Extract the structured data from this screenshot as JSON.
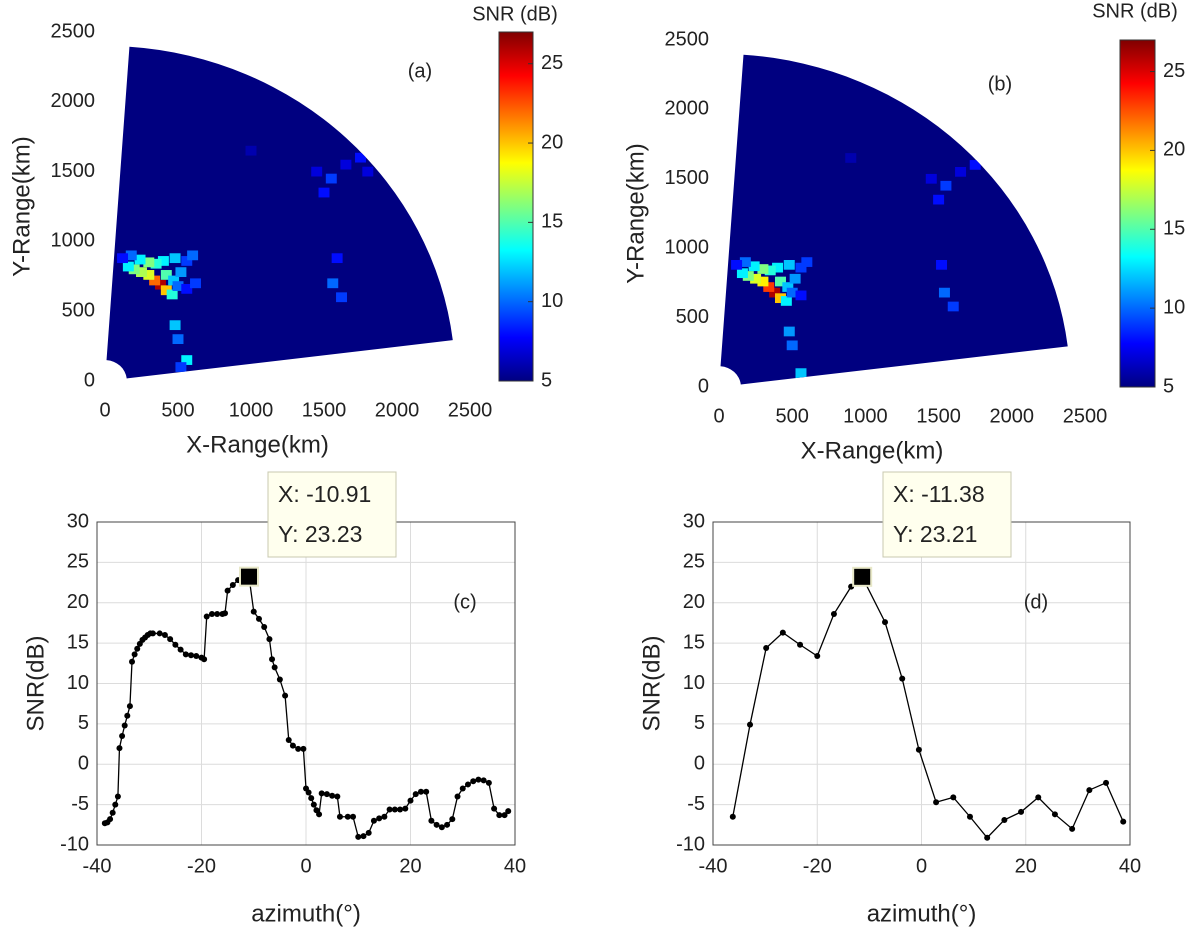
{
  "chart_data": [
    {
      "type": "heatmap",
      "label": "(a)",
      "xlabel": "X-Range(km)",
      "ylabel": "Y-Range(km)",
      "colorbar_label": "SNR (dB)",
      "xlim": [
        0,
        2500
      ],
      "xticks": [
        0,
        500,
        1000,
        1500,
        2000,
        2500
      ],
      "ylim": [
        0,
        2500
      ],
      "yticks": [
        0,
        500,
        1000,
        1500,
        2000,
        2500
      ],
      "clim": [
        5,
        27
      ],
      "cticks": [
        5,
        10,
        15,
        20,
        25
      ],
      "x": [
        380,
        340,
        300,
        250,
        200,
        160,
        420,
        460,
        420,
        470,
        500,
        520,
        560,
        600,
        480,
        400,
        350,
        300,
        240,
        180,
        120,
        560,
        620,
        480,
        500,
        560,
        520,
        1560,
        1620,
        1590,
        1500,
        1550,
        1650,
        1750,
        1800,
        1450,
        1000
      ],
      "y": [
        690,
        720,
        760,
        780,
        800,
        820,
        650,
        620,
        760,
        720,
        680,
        780,
        860,
        900,
        880,
        860,
        840,
        850,
        870,
        900,
        880,
        660,
        700,
        400,
        300,
        150,
        100,
        700,
        600,
        880,
        1350,
        1450,
        1550,
        1600,
        1500,
        1500,
        1650
      ],
      "values": [
        26,
        22,
        18,
        17,
        16,
        13,
        20,
        14,
        15,
        12,
        10,
        11,
        9,
        10,
        12,
        13,
        14,
        16,
        13,
        10,
        8,
        8,
        9,
        12,
        10,
        13,
        9,
        10,
        9,
        8,
        8,
        9,
        7,
        8,
        7,
        7,
        6
      ]
    },
    {
      "type": "heatmap",
      "label": "(b)",
      "xlabel": "X-Range(km)",
      "ylabel": "Y-Range(km)",
      "colorbar_label": "SNR (dB)",
      "xlim": [
        0,
        2500
      ],
      "xticks": [
        0,
        500,
        1000,
        1500,
        2000,
        2500
      ],
      "ylim": [
        0,
        2500
      ],
      "yticks": [
        0,
        500,
        1000,
        1500,
        2000,
        2500
      ],
      "clim": [
        5,
        27
      ],
      "cticks": [
        5,
        10,
        15,
        20,
        25
      ],
      "x": [
        380,
        340,
        300,
        250,
        200,
        160,
        420,
        460,
        420,
        470,
        500,
        520,
        560,
        600,
        480,
        400,
        350,
        300,
        240,
        180,
        120,
        560,
        480,
        500,
        560,
        1540,
        1600,
        1520,
        1500,
        1550,
        1650,
        1750,
        1450,
        900
      ],
      "y": [
        680,
        720,
        760,
        780,
        800,
        820,
        640,
        620,
        760,
        720,
        680,
        780,
        860,
        900,
        880,
        860,
        840,
        850,
        870,
        900,
        880,
        660,
        400,
        300,
        100,
        680,
        580,
        880,
        1350,
        1450,
        1550,
        1600,
        1500,
        1650
      ],
      "values": [
        26,
        23,
        19,
        18,
        16,
        13,
        20,
        13,
        15,
        12,
        10,
        11,
        9,
        9,
        12,
        13,
        14,
        16,
        13,
        10,
        8,
        8,
        11,
        10,
        12,
        10,
        9,
        8,
        8,
        9,
        7,
        8,
        7,
        6
      ]
    },
    {
      "type": "line",
      "label": "(c)",
      "xlabel": "azimuth(°)",
      "ylabel": "SNR(dB)",
      "grid": true,
      "xlim": [
        -40,
        40
      ],
      "xticks": [
        -40,
        -20,
        0,
        20,
        40
      ],
      "ylim": [
        -10,
        30
      ],
      "yticks": [
        -10,
        -5,
        0,
        5,
        10,
        15,
        20,
        25,
        30
      ],
      "datatip": [
        "X: -10.91",
        "Y: 23.23"
      ],
      "x": [
        -38.5,
        -38,
        -37.5,
        -37,
        -36.5,
        -36,
        -35.7,
        -35.2,
        -34.7,
        -34.2,
        -33.7,
        -33.3,
        -32.8,
        -32.3,
        -31.8,
        -31.3,
        -30.8,
        -30.3,
        -29.8,
        -29.3,
        -28,
        -27,
        -26,
        -25,
        -24,
        -23,
        -22,
        -21,
        -20,
        -19.5,
        -19,
        -18,
        -17,
        -16,
        -15.5,
        -15,
        -14,
        -13,
        -12,
        -10.91,
        -10,
        -9,
        -8,
        -7,
        -6.5,
        -6,
        -5,
        -4,
        -3.3,
        -2.5,
        -1.5,
        -0.5,
        0,
        0.5,
        1,
        1.5,
        2,
        2.5,
        3,
        4,
        5,
        6,
        6.5,
        8,
        9,
        10,
        11,
        12,
        13,
        14,
        15,
        16,
        17,
        18,
        19,
        20,
        21,
        22,
        23,
        24,
        25,
        26,
        27,
        28,
        29,
        30,
        31,
        32,
        33,
        34,
        35,
        36,
        37,
        38,
        38.7
      ],
      "series": [
        {
          "color": "#000000",
          "values": [
            -7.3,
            -7.2,
            -6.8,
            -6,
            -5,
            -4,
            2,
            3.5,
            4.8,
            6,
            7.2,
            12.7,
            13.6,
            14.3,
            14.9,
            15.4,
            15.7,
            16,
            16.2,
            16.2,
            16.2,
            16,
            15.5,
            14.8,
            14.2,
            13.6,
            13.5,
            13.4,
            13.2,
            13,
            18.3,
            18.6,
            18.6,
            18.6,
            18.7,
            21.5,
            22.2,
            22.8,
            23.1,
            23.23,
            18.9,
            18,
            17,
            15.5,
            13,
            12,
            10.5,
            8.5,
            3,
            2.3,
            1.9,
            1.9,
            -3,
            -3.5,
            -4.2,
            -5,
            -5.7,
            -6.2,
            -3.6,
            -3.7,
            -3.9,
            -4,
            -6.5,
            -6.5,
            -6.5,
            -9,
            -8.9,
            -8.5,
            -7,
            -6.7,
            -6.5,
            -5.6,
            -5.6,
            -5.6,
            -5.5,
            -4.5,
            -3.7,
            -3.4,
            -3.4,
            -7,
            -7.5,
            -7.8,
            -7.5,
            -6.8,
            -4,
            -3,
            -2.5,
            -2.1,
            -1.9,
            -2,
            -2.3,
            -5.5,
            -6.3,
            -6.3,
            -5.8
          ]
        }
      ]
    },
    {
      "type": "line",
      "label": "(d)",
      "xlabel": "azimuth(°)",
      "ylabel": "SNR(dB)",
      "grid": true,
      "xlim": [
        -40,
        40
      ],
      "xticks": [
        -40,
        -20,
        0,
        20,
        40
      ],
      "ylim": [
        -10,
        30
      ],
      "yticks": [
        -10,
        -5,
        0,
        5,
        10,
        15,
        20,
        25,
        30
      ],
      "datatip": [
        "X: -11.38",
        "Y: 23.21"
      ],
      "x": [
        -36.2,
        -32.9,
        -29.8,
        -26.6,
        -23.3,
        -20,
        -16.8,
        -13.5,
        -11.38,
        -7,
        -3.7,
        -0.5,
        2.8,
        6.1,
        9.3,
        12.6,
        15.9,
        19.1,
        22.4,
        25.6,
        28.9,
        32.2,
        35.4,
        38.7
      ],
      "series": [
        {
          "color": "#000000",
          "values": [
            -6.5,
            4.9,
            14.4,
            16.3,
            14.8,
            13.4,
            18.6,
            22,
            23.21,
            17.6,
            10.6,
            1.8,
            -4.7,
            -4.1,
            -6.5,
            -9.1,
            -6.9,
            -5.9,
            -4.1,
            -6.2,
            -8,
            -3.2,
            -2.3,
            -7.1
          ]
        }
      ]
    }
  ]
}
